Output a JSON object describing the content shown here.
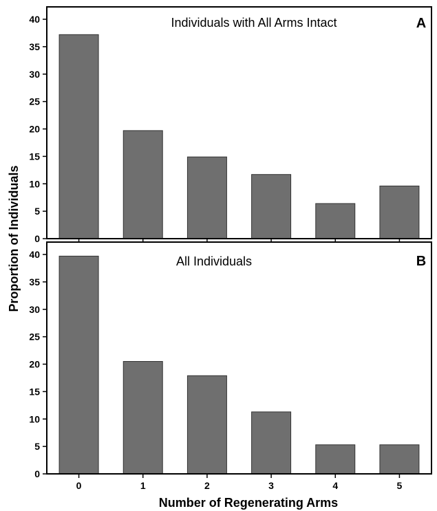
{
  "colors": {
    "bar_fill": "#6f6f6f",
    "bar_stroke": "#333333",
    "axis": "#000000"
  },
  "chart_data": [
    {
      "type": "bar",
      "panel_letter": "A",
      "title": "Individuals with All Arms Intact",
      "categories": [
        "0",
        "1",
        "2",
        "3",
        "4",
        "5"
      ],
      "values": [
        37.2,
        19.7,
        14.9,
        11.7,
        6.4,
        9.6
      ],
      "ylim": [
        0,
        40
      ],
      "yticks": [
        0,
        5,
        10,
        15,
        20,
        25,
        30,
        35,
        40
      ],
      "grid": false
    },
    {
      "type": "bar",
      "panel_letter": "B",
      "title": "All Individuals",
      "categories": [
        "0",
        "1",
        "2",
        "3",
        "4",
        "5"
      ],
      "values": [
        39.7,
        20.5,
        17.9,
        11.3,
        5.3,
        5.3
      ],
      "ylim": [
        0,
        40
      ],
      "yticks": [
        0,
        5,
        10,
        15,
        20,
        25,
        30,
        35,
        40
      ],
      "grid": false
    }
  ],
  "xlabel": "Number of Regenerating Arms",
  "ylabel": "Proportion of Individuals"
}
